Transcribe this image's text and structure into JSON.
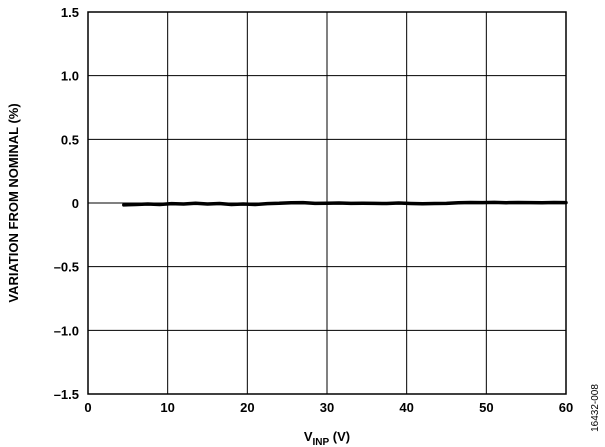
{
  "chart_data": {
    "type": "line",
    "title": "",
    "xlabel": {
      "main": "V",
      "subscript": "INP",
      "suffix": " (V)"
    },
    "ylabel": "VARIATION FROM NOMINAL (%)",
    "xlim": [
      0,
      60
    ],
    "ylim": [
      -1.5,
      1.5
    ],
    "x_ticks": [
      0,
      10,
      20,
      30,
      40,
      50,
      60
    ],
    "y_ticks": [
      1.5,
      1.0,
      0.5,
      0,
      -0.5,
      -1.0,
      -1.5
    ],
    "x_tick_labels": [
      "0",
      "10",
      "20",
      "30",
      "40",
      "50",
      "60"
    ],
    "y_tick_labels": [
      "1.5",
      "1.0",
      "0.5",
      "0",
      "–0.5",
      "–1.0",
      "–1.5"
    ],
    "grid": true,
    "legend": "none",
    "series": [
      {
        "color": "#000000",
        "x": [
          4.5,
          6,
          7.5,
          9,
          10.5,
          12,
          13.5,
          15,
          16.5,
          18,
          19.5,
          21,
          22.5,
          24,
          25.5,
          27,
          28.5,
          30,
          31.5,
          33,
          34.5,
          36,
          37.5,
          39,
          40.5,
          42,
          43.5,
          45,
          46.5,
          48,
          49.5,
          51,
          52.5,
          54,
          55.5,
          57,
          58.5,
          60
        ],
        "y": [
          -0.015,
          -0.012,
          -0.008,
          -0.012,
          -0.005,
          -0.008,
          -0.002,
          -0.008,
          -0.004,
          -0.012,
          -0.008,
          -0.012,
          -0.005,
          -0.002,
          0.002,
          0.003,
          -0.003,
          -0.002,
          0.0,
          -0.003,
          -0.002,
          -0.003,
          -0.004,
          0.0,
          -0.004,
          -0.006,
          -0.004,
          -0.003,
          0.002,
          0.004,
          0.003,
          0.005,
          0.002,
          0.004,
          0.003,
          0.002,
          0.004,
          0.003
        ]
      }
    ]
  },
  "figure_id": "16432-008"
}
